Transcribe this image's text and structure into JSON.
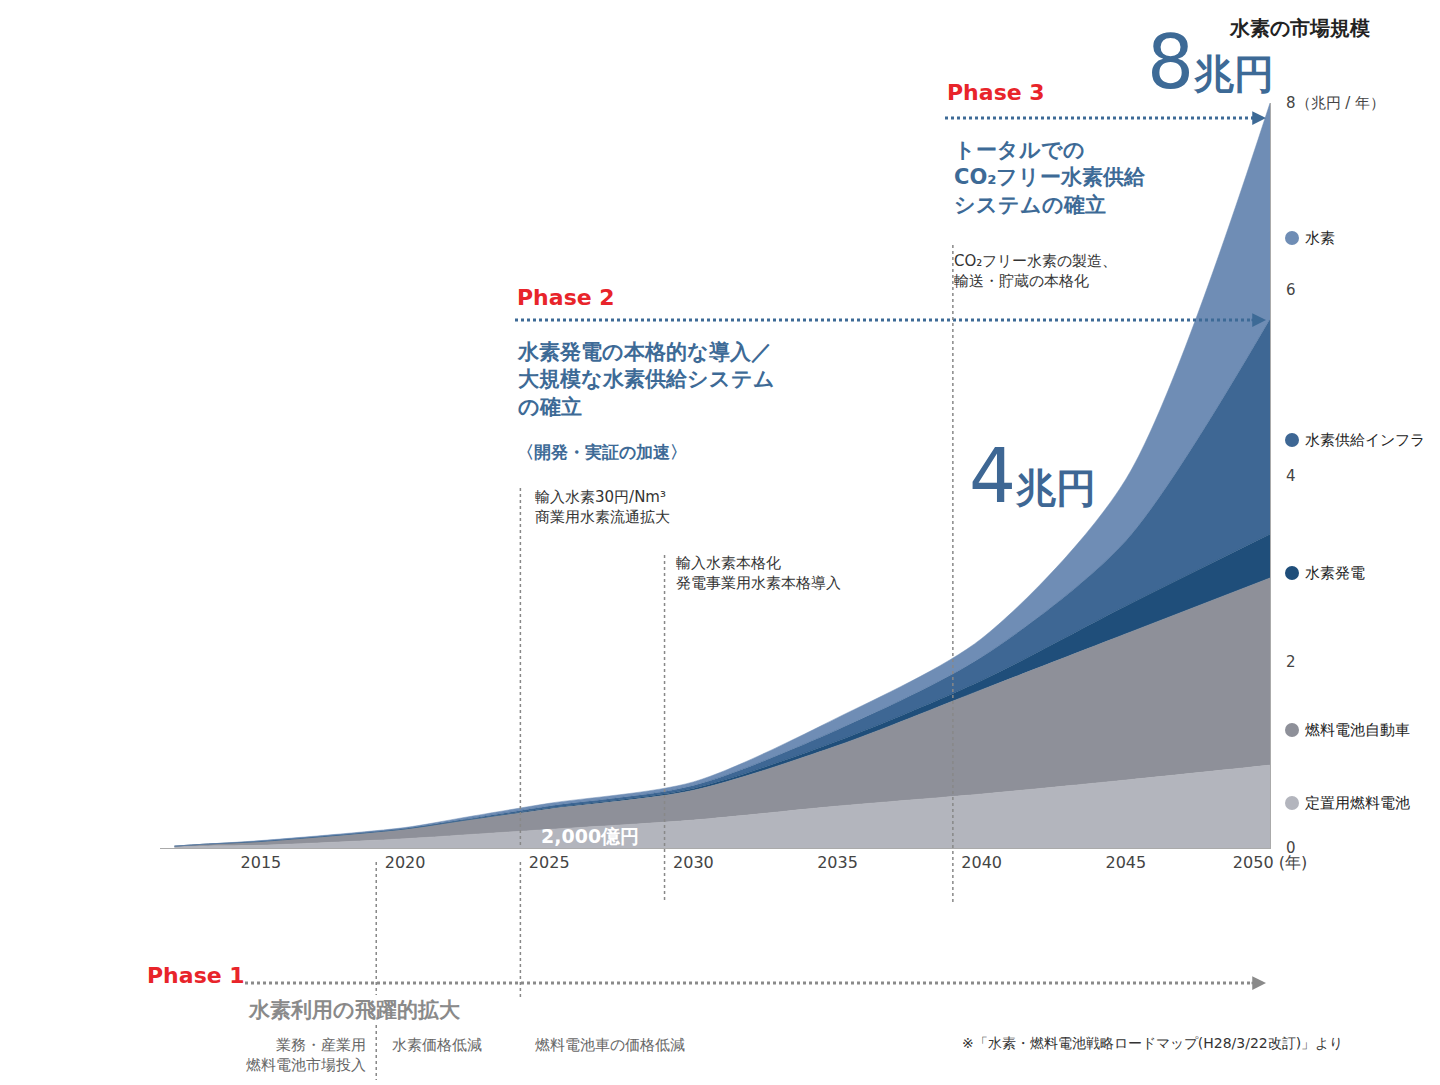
{
  "chart_data": {
    "type": "area",
    "stacked": true,
    "title": "水素の市場規模",
    "x": [
      2012,
      2013,
      2015,
      2020,
      2022,
      2025,
      2030,
      2035,
      2040,
      2045,
      2050
    ],
    "series": [
      {
        "name": "定置用燃料電池",
        "color": "#b3b5bd",
        "values": [
          0.01,
          0.02,
          0.03,
          0.1,
          0.14,
          0.2,
          0.3,
          0.45,
          0.58,
          0.73,
          0.89
        ]
      },
      {
        "name": "燃料電池自動車",
        "color": "#8e9099",
        "values": [
          0.01,
          0.02,
          0.04,
          0.1,
          0.15,
          0.22,
          0.32,
          0.65,
          1.12,
          1.57,
          2.01
        ]
      },
      {
        "name": "水素発電",
        "color": "#1f4e7a",
        "values": [
          0,
          0,
          0,
          0.005,
          0.005,
          0.01,
          0.02,
          0.05,
          0.1,
          0.3,
          0.47
        ]
      },
      {
        "name": "水素供給インフラ",
        "color": "#3e6794",
        "values": [
          0,
          0,
          0.005,
          0.005,
          0.01,
          0.02,
          0.03,
          0.12,
          0.25,
          0.7,
          2.31
        ]
      },
      {
        "name": "水素",
        "color": "#6f8db5",
        "values": [
          0,
          0,
          0.005,
          0.01,
          0.02,
          0.03,
          0.04,
          0.13,
          0.2,
          0.66,
          2.32
        ]
      }
    ],
    "xlim": [
      2011.5,
      2050
    ],
    "xticks": [
      2015,
      2020,
      2025,
      2030,
      2035,
      2040,
      2045,
      {
        "value": 2050,
        "label": "2050 (年)"
      }
    ],
    "ylim": [
      0,
      8
    ],
    "yticks": [
      0,
      2,
      4,
      6,
      {
        "value": 8,
        "label": "8（兆円 / 年）"
      }
    ],
    "grid": false,
    "legend": "right",
    "value_callouts": [
      {
        "value": 8,
        "label": "8兆円"
      },
      {
        "value": 4,
        "label": "4兆円"
      },
      {
        "value": 0.2,
        "label": "2,000億円"
      }
    ],
    "phases": [
      {
        "label": "Phase 1",
        "heading": [
          "水素利用の飛躍的拡大"
        ],
        "lines": [
          2019,
          2024
        ],
        "notes": [
          [
            "業務・産業用",
            "燃料電池市場投入"
          ],
          [
            "水素価格低減"
          ],
          [
            "燃料電池車の価格低減"
          ]
        ]
      },
      {
        "label": "Phase 2",
        "heading": [
          "水素発電の本格的な導入／",
          "大規模な水素供給システム",
          "の確立"
        ],
        "subheading": "〈開発・実証の加速〉",
        "lines": [
          2024,
          2029
        ],
        "notes": [
          [
            "輸入水素30円/Nm³",
            "商業用水素流通拡大"
          ],
          [
            "輸入水素本格化",
            "発電事業用水素本格導入"
          ]
        ]
      },
      {
        "label": "Phase 3",
        "heading": [
          "トータルでの",
          "CO₂フリー水素供給",
          "システムの確立"
        ],
        "lines": [
          2039
        ],
        "notes": [
          [
            "CO₂フリー水素の製造、",
            "輸送・貯蔵の本格化"
          ]
        ]
      }
    ],
    "source": "※「水素・燃料電池戦略ロードマップ(H28/3/22改訂)」より"
  }
}
